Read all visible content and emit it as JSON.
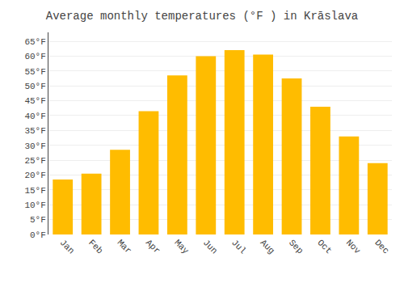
{
  "chart_data": {
    "type": "bar",
    "title": "Average monthly temperatures (°F ) in Krāslava",
    "categories": [
      "Jan",
      "Feb",
      "Mar",
      "Apr",
      "May",
      "Jun",
      "Jul",
      "Aug",
      "Sep",
      "Oct",
      "Nov",
      "Dec"
    ],
    "values": [
      18.5,
      20.5,
      28.5,
      41.5,
      53.5,
      60.0,
      62.0,
      60.5,
      52.5,
      43.0,
      33.0,
      24.0
    ],
    "color": "#FFBC00",
    "ylim": [
      0,
      68
    ],
    "yticks": [
      {
        "value": 0,
        "label": "0°F"
      },
      {
        "value": 5,
        "label": "5°F"
      },
      {
        "value": 10,
        "label": "10°F"
      },
      {
        "value": 15,
        "label": "15°F"
      },
      {
        "value": 20,
        "label": "20°F"
      },
      {
        "value": 25,
        "label": "25°F"
      },
      {
        "value": 30,
        "label": "30°F"
      },
      {
        "value": 35,
        "label": "35°F"
      },
      {
        "value": 40,
        "label": "40°F"
      },
      {
        "value": 45,
        "label": "45°F"
      },
      {
        "value": 50,
        "label": "50°F"
      },
      {
        "value": 55,
        "label": "55°F"
      },
      {
        "value": 60,
        "label": "60°F"
      },
      {
        "value": 65,
        "label": "65°F"
      }
    ],
    "grid": true
  }
}
